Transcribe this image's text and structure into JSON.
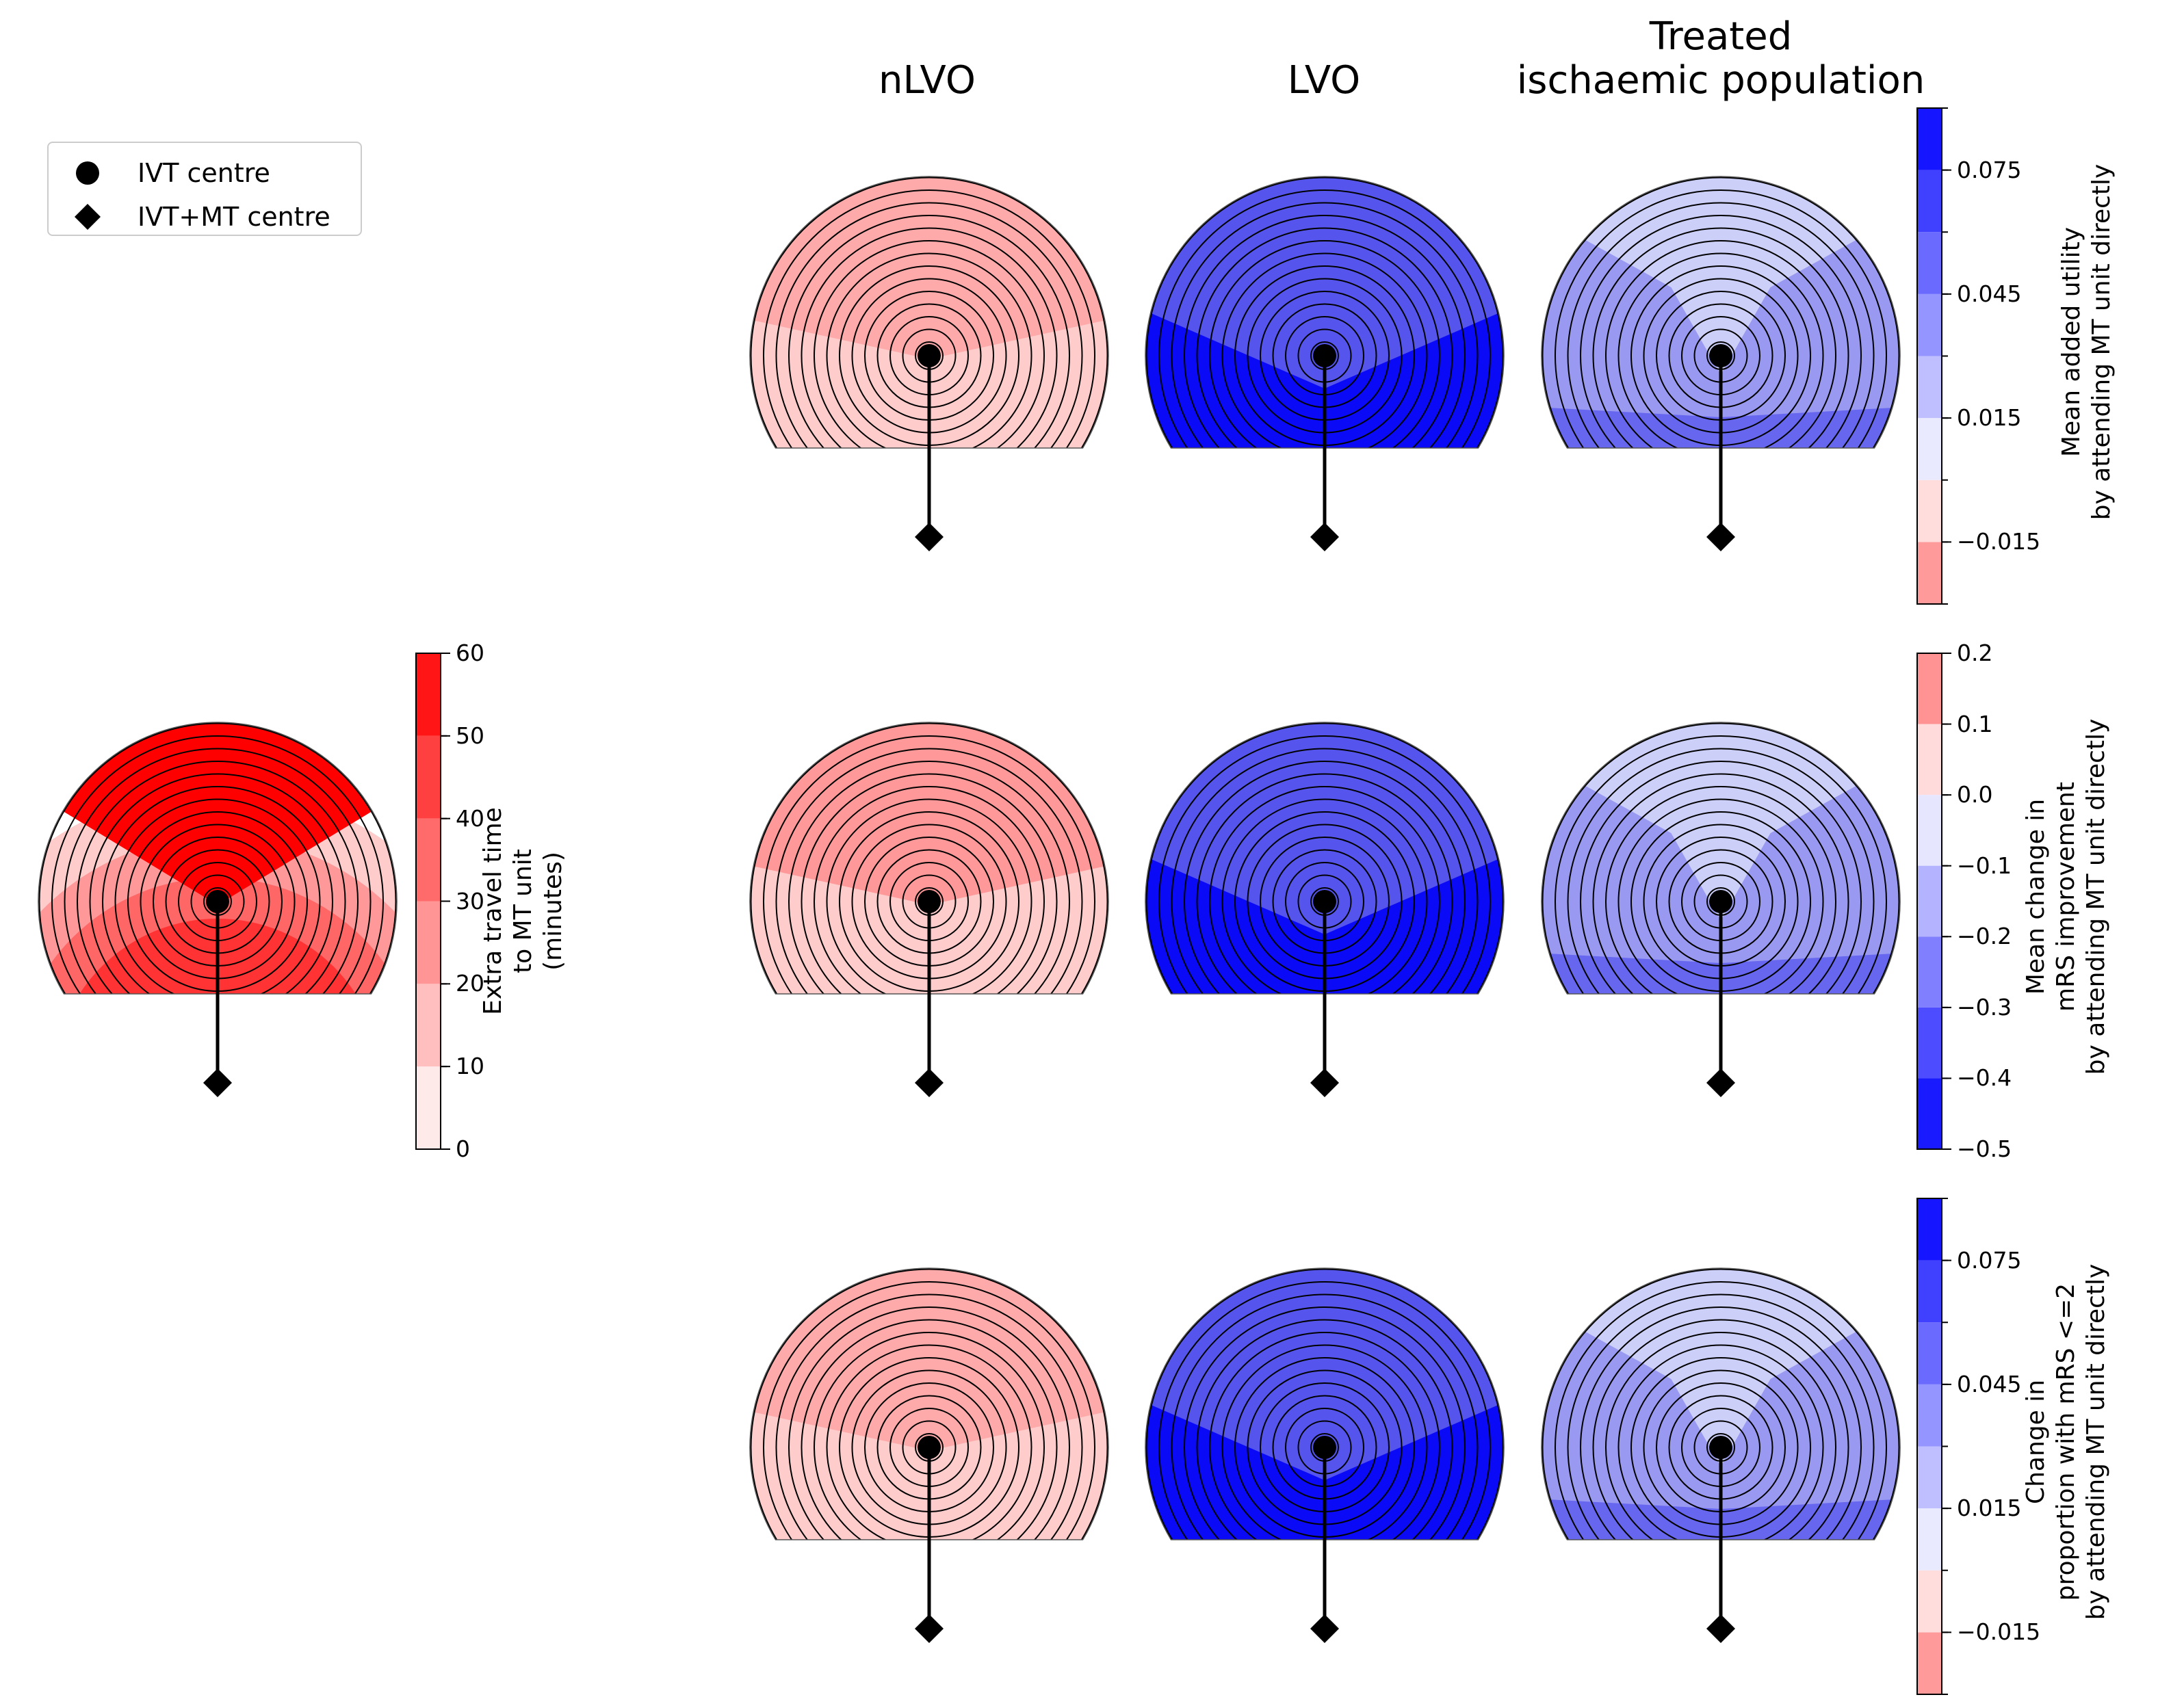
{
  "legend": {
    "items": [
      {
        "label": "IVT centre",
        "marker": "circle"
      },
      {
        "label": "IVT+MT centre",
        "marker": "diamond"
      }
    ]
  },
  "columns": [
    "nLVO",
    "LVO",
    "Treated\nischaemic population"
  ],
  "colors": {
    "blue_dark": "#0000ff",
    "red_dark": "#ff0000",
    "white": "#ffffff"
  },
  "chart_data": [
    {
      "type": "heatmap",
      "name": "travel_time",
      "colorbar": {
        "label": "Extra travel time\nto MT unit\n(minutes)",
        "ticks": [
          0,
          10,
          20,
          30,
          40,
          50,
          60
        ],
        "tick_labels": [
          "0",
          "10",
          "20",
          "30",
          "40",
          "50",
          "60"
        ],
        "range": [
          0,
          60
        ],
        "bands": [
          [
            0,
            10
          ],
          [
            10,
            20
          ],
          [
            20,
            30
          ],
          [
            30,
            40
          ],
          [
            40,
            50
          ],
          [
            50,
            60
          ]
        ],
        "colormap": "white-to-red"
      }
    },
    {
      "type": "heatmap",
      "name": "utility",
      "colorbar": {
        "label": "Mean added utility\nby attending MT unit directly",
        "ticks": [
          0.075,
          0.045,
          0.015,
          -0.015
        ],
        "tick_labels": [
          "0.075",
          "0.045",
          "0.015",
          "−0.015"
        ],
        "range": [
          -0.03,
          0.09
        ],
        "bands": [
          [
            -0.03,
            -0.015
          ],
          [
            -0.015,
            0.0
          ],
          [
            0.0,
            0.015
          ],
          [
            0.015,
            0.03
          ],
          [
            0.03,
            0.045
          ],
          [
            0.045,
            0.06
          ],
          [
            0.06,
            0.075
          ],
          [
            0.075,
            0.09
          ]
        ],
        "colormap": "red-white-blue"
      }
    },
    {
      "type": "heatmap",
      "name": "mrs_shift",
      "colorbar": {
        "label": "Mean change in\nmRS improvement\nby attending MT unit directly",
        "ticks": [
          0.2,
          0.1,
          0.0,
          -0.1,
          -0.2,
          -0.3,
          -0.4,
          -0.5
        ],
        "tick_labels": [
          "0.2",
          "0.1",
          "0.0",
          "−0.1",
          "−0.2",
          "−0.3",
          "−0.4",
          "−0.5"
        ],
        "range": [
          -0.5,
          0.2
        ],
        "bands": [
          [
            0.1,
            0.2
          ],
          [
            0.0,
            0.1
          ],
          [
            -0.1,
            0.0
          ],
          [
            -0.2,
            -0.1
          ],
          [
            -0.3,
            -0.2
          ],
          [
            -0.4,
            -0.3
          ],
          [
            -0.5,
            -0.4
          ]
        ],
        "colormap": "blue-white-red"
      }
    },
    {
      "type": "heatmap",
      "name": "mrs_le2",
      "colorbar": {
        "label": "Change in\nproportion with mRS <=2\nby attending MT unit directly",
        "ticks": [
          0.075,
          0.045,
          0.015,
          -0.015
        ],
        "tick_labels": [
          "0.075",
          "0.045",
          "0.015",
          "−0.015"
        ],
        "range": [
          -0.03,
          0.09
        ],
        "bands": [
          [
            -0.03,
            -0.015
          ],
          [
            -0.015,
            0.0
          ],
          [
            0.0,
            0.015
          ],
          [
            0.015,
            0.03
          ],
          [
            0.03,
            0.045
          ],
          [
            0.045,
            0.06
          ],
          [
            0.06,
            0.075
          ],
          [
            0.075,
            0.09
          ]
        ],
        "colormap": "red-white-blue"
      }
    }
  ],
  "panel_colors": {
    "travel_time": [
      "#ffffff",
      "#ffcccc",
      "#ff9999",
      "#ff6666",
      "#ff3333",
      "#ff0000"
    ],
    "utility_nlvo": [
      "#ffcccc",
      "#ffaaaa"
    ],
    "utility_lvo": [
      "#0a0af6",
      "#3333f0",
      "#5555ee"
    ],
    "utility_treated": [
      "#6666ee",
      "#9999f2",
      "#cccff8"
    ],
    "mrs_nlvo": [
      "#ffcccc",
      "#ff9999"
    ],
    "mrs_lvo": [
      "#0a0af6",
      "#3333f0",
      "#5555ee"
    ],
    "mrs_treated": [
      "#6666ee",
      "#9999f2",
      "#cccff8"
    ],
    "le2_nlvo": [
      "#ffcccc",
      "#ffaaaa"
    ],
    "le2_lvo": [
      "#0a0af6",
      "#3333f0",
      "#5555ee"
    ],
    "le2_treated": [
      "#6666ee",
      "#9999f2",
      "#cccff8"
    ]
  }
}
